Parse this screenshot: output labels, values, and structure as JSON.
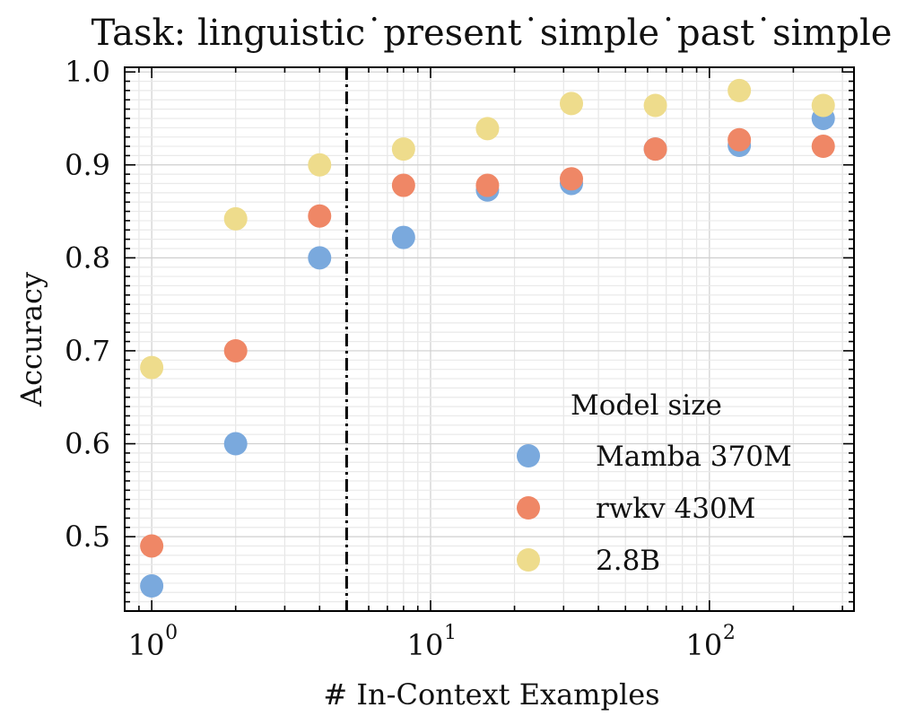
{
  "chart_data": {
    "type": "scatter",
    "title": "Task: linguistic˙present˙simple˙past˙simple",
    "xlabel": "# In-Context Examples",
    "ylabel": "Accuracy",
    "xscale": "log",
    "xlim": [
      0.8,
      330
    ],
    "ylim": [
      0.42,
      1.005
    ],
    "x_ticks": [
      {
        "value": 1,
        "base": "10",
        "exp": "0"
      },
      {
        "value": 10,
        "base": "10",
        "exp": "1"
      },
      {
        "value": 100,
        "base": "10",
        "exp": "2"
      }
    ],
    "y_ticks": [
      "0.5",
      "0.6",
      "0.7",
      "0.8",
      "0.9",
      "1.0"
    ],
    "grid": true,
    "vline": {
      "x": 5,
      "style": "dash-dot",
      "color": "#000000"
    },
    "x": [
      1,
      2,
      4,
      8,
      16,
      32,
      64,
      128,
      256
    ],
    "series": [
      {
        "name": "Mamba 370M",
        "color": "#7aa9dd",
        "values": [
          0.447,
          0.6,
          0.8,
          0.822,
          0.873,
          0.88,
          0.917,
          0.921,
          0.95
        ]
      },
      {
        "name": "rwkv 430M",
        "color": "#ef8766",
        "values": [
          0.49,
          0.7,
          0.845,
          0.878,
          0.878,
          0.885,
          0.917,
          0.927,
          0.92
        ]
      },
      {
        "name": "2.8B",
        "color": "#eedc8c",
        "values": [
          0.682,
          0.842,
          0.9,
          0.917,
          0.939,
          0.966,
          0.964,
          0.98,
          0.964
        ]
      }
    ],
    "legend": {
      "title": "Model size",
      "placement": "lower-right"
    }
  }
}
